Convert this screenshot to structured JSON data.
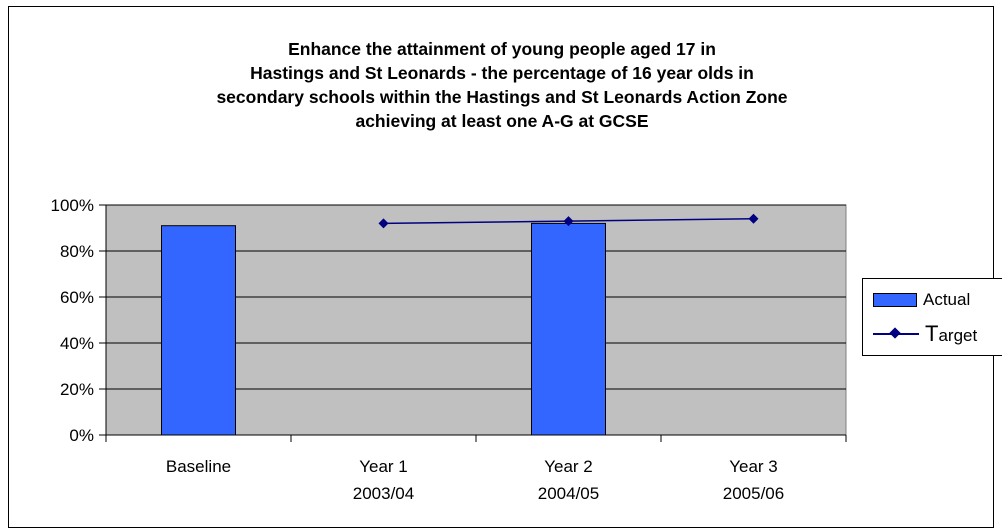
{
  "chart_data": {
    "type": "bar",
    "title_lines": [
      "Enhance the attainment of young people aged 17 in",
      "Hastings and St Leonards - the percentage of 16 year olds in",
      "secondary schools within the Hastings and St Leonards Action Zone",
      "achieving at least one A-G at GCSE"
    ],
    "categories": [
      [
        "Baseline"
      ],
      [
        "Year 1",
        "2003/04"
      ],
      [
        "Year 2",
        "2004/05"
      ],
      [
        "Year 3",
        "2005/06"
      ]
    ],
    "y_ticks": [
      "0%",
      "20%",
      "40%",
      "60%",
      "80%",
      "100%"
    ],
    "ylim": [
      0,
      100
    ],
    "grid": true,
    "legend_position": "right",
    "series": [
      {
        "name": "Actual",
        "type": "bar",
        "color": "#3366ff",
        "values": [
          91,
          null,
          92,
          null
        ]
      },
      {
        "name": "Target",
        "type": "line",
        "color": "#000080",
        "values": [
          null,
          92,
          93,
          94
        ]
      }
    ]
  },
  "legend": {
    "actual_label": "Actual",
    "target_first": "T",
    "target_rest": "arget"
  }
}
